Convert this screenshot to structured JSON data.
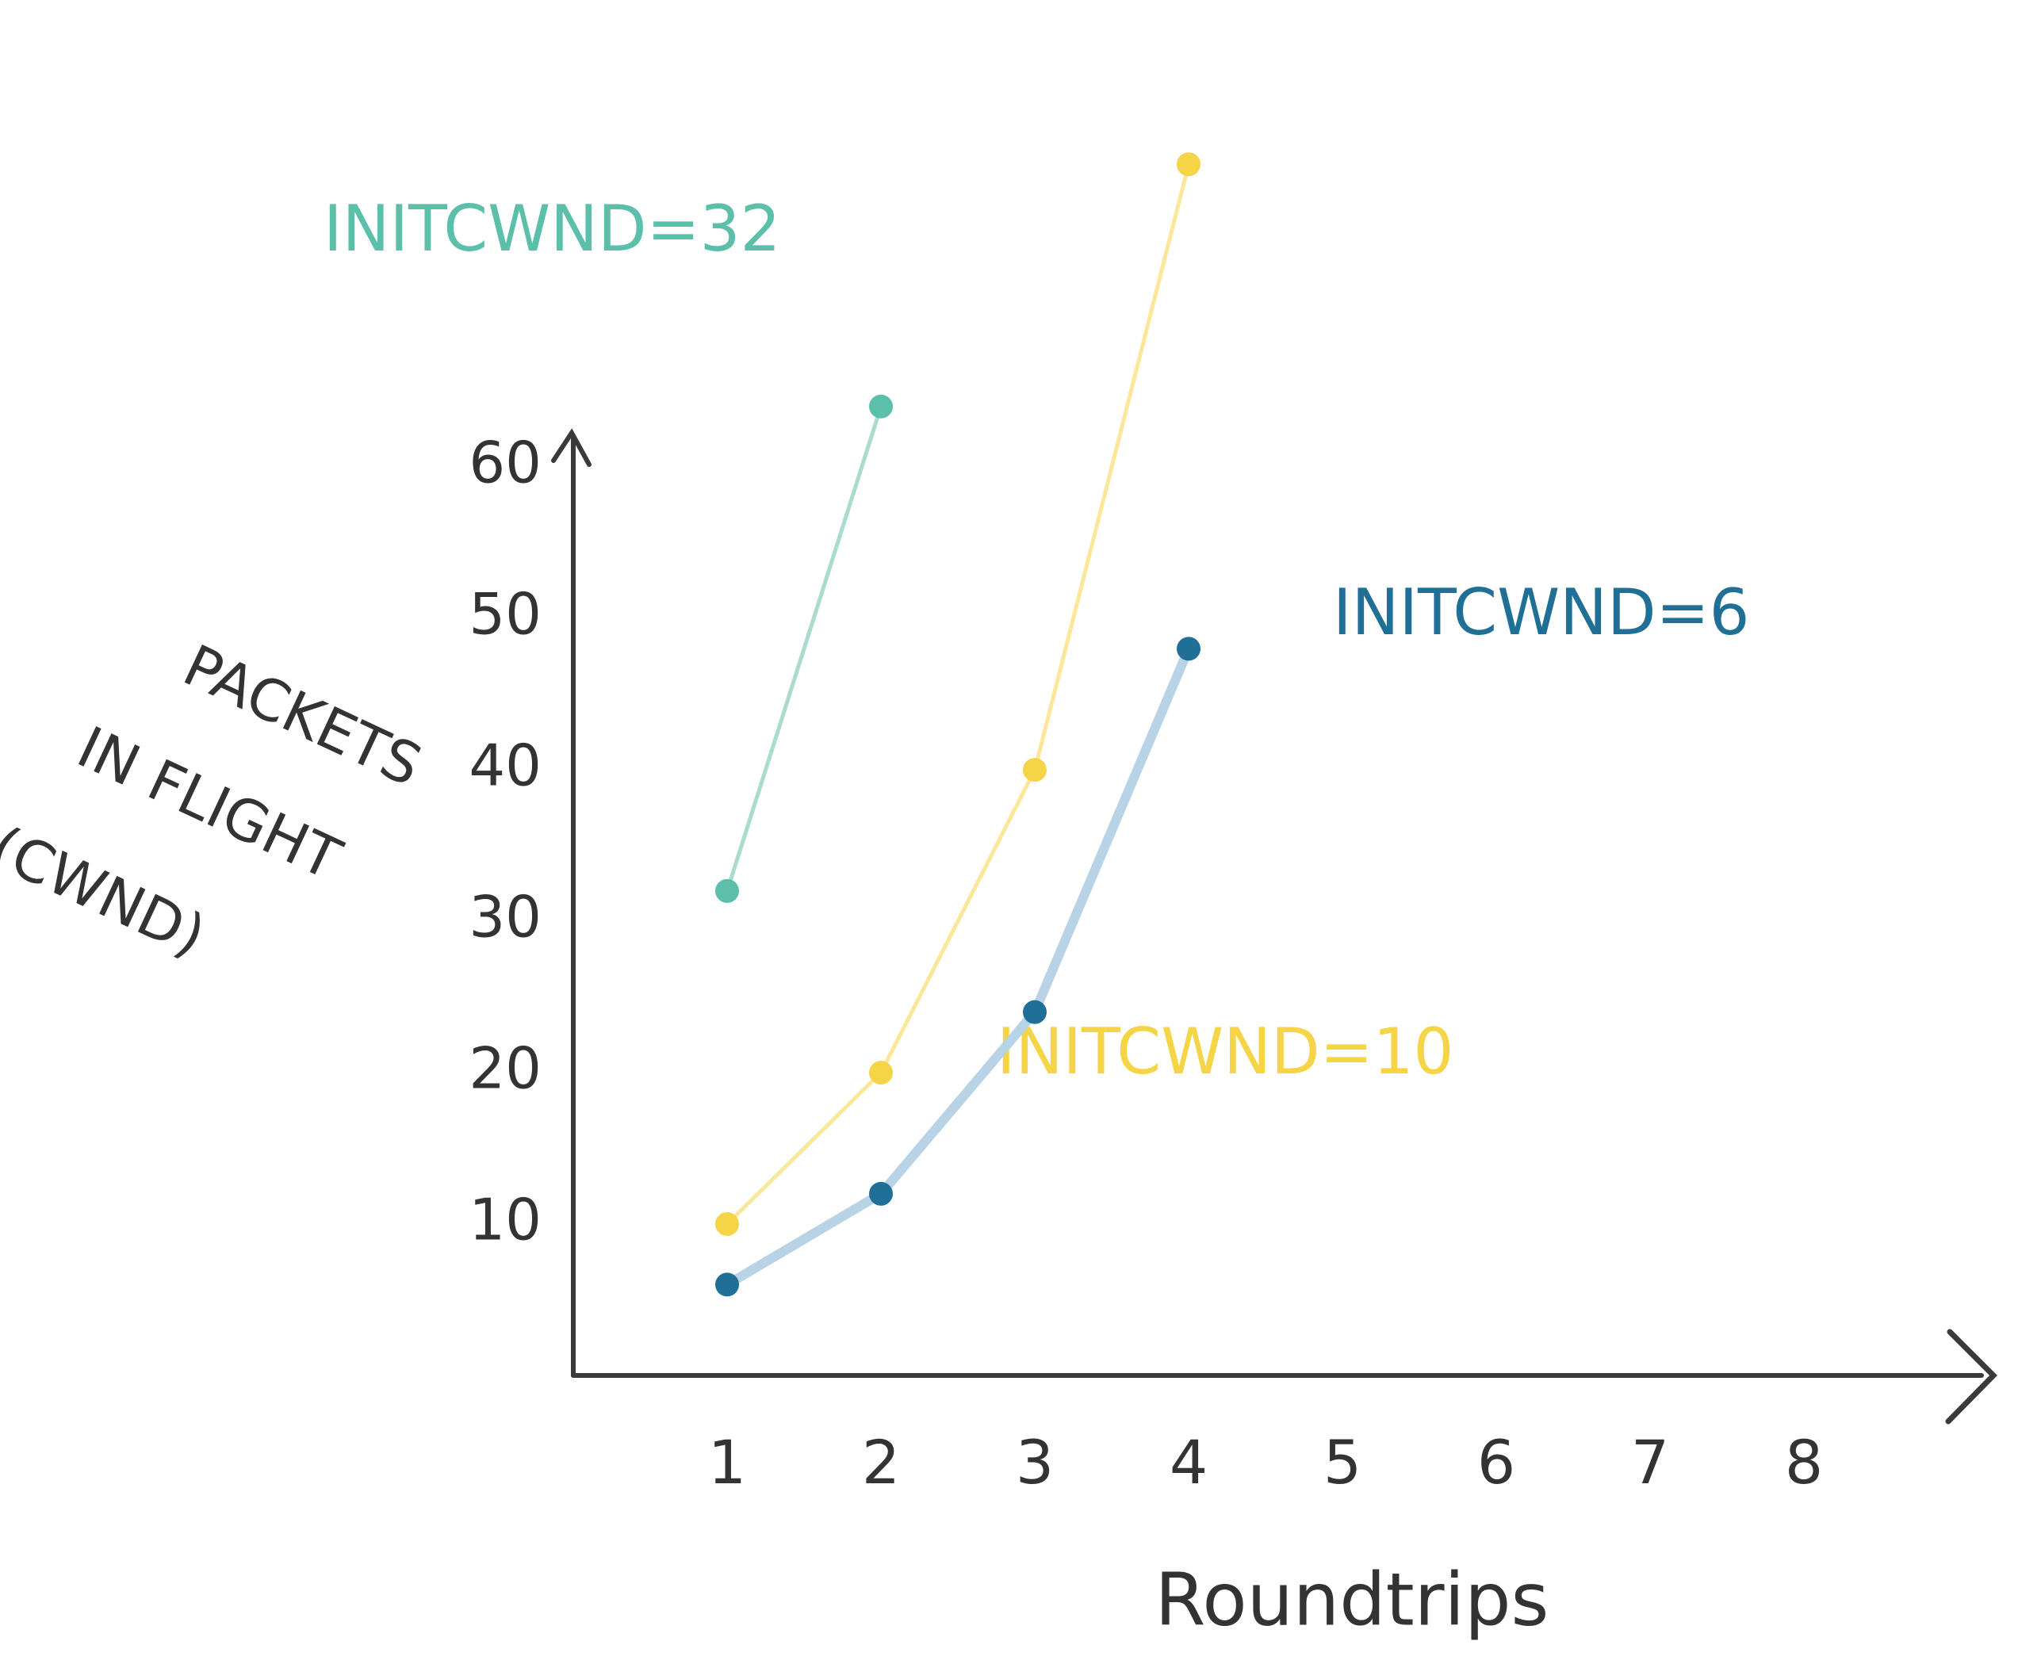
{
  "chart_data": {
    "type": "line",
    "xlabel": "Roundtrips",
    "ylabel_lines": [
      "PACKETS",
      "IN FLIGHT",
      "(CWND)"
    ],
    "x": [
      1,
      2,
      3,
      4
    ],
    "series": [
      {
        "name": "INITCWND=32",
        "color": "#5bbfa9",
        "values": [
          32,
          64,
          null,
          null
        ]
      },
      {
        "name": "INITCWND=10",
        "color": "#f5d445",
        "values": [
          10,
          20,
          40,
          80
        ]
      },
      {
        "name": "INITCWND=6",
        "color": "#1f6f96",
        "values": [
          6,
          12,
          24,
          48
        ]
      }
    ],
    "xlim": [
      0,
      9
    ],
    "ylim": [
      0,
      62
    ],
    "xticks": [
      1,
      2,
      3,
      4,
      5,
      6,
      7,
      8
    ],
    "yticks": [
      10,
      20,
      30,
      40,
      50,
      60
    ],
    "grid": false
  }
}
